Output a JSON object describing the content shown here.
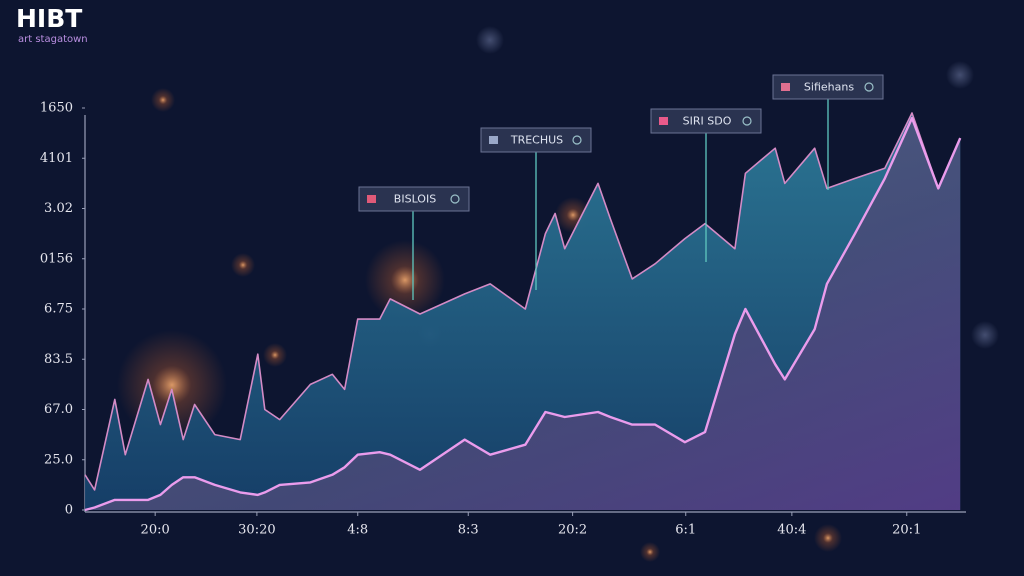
{
  "chart_data": {
    "type": "area",
    "title": "HIBT",
    "subtitle": "art stagatown",
    "x": [
      0,
      1.1,
      3.4,
      4.6,
      7.2,
      8.6,
      9.9,
      11.2,
      12.5,
      14.8,
      17.7,
      19.7,
      20.5,
      22.2,
      25.7,
      28.2,
      29.6,
      31.1,
      33.6,
      34.8,
      38.2,
      43.3,
      46.2,
      50.2,
      52.5,
      53.6,
      54.7,
      58.5,
      59.9,
      62.4,
      65.0,
      68.4,
      70.7,
      74.1,
      75.3,
      78.7,
      79.8,
      83.2,
      84.6,
      87.8,
      91.2,
      94.3,
      97.3,
      99.8
    ],
    "series": [
      {
        "color": "#d48bc6",
        "values": [
          0.7,
          0.4,
          2.2,
          1.1,
          2.6,
          1.7,
          2.4,
          1.4,
          2.1,
          1.5,
          1.4,
          3.1,
          2.0,
          1.8,
          2.5,
          2.7,
          2.4,
          3.8,
          3.8,
          4.2,
          3.9,
          4.3,
          4.5,
          4.0,
          5.5,
          5.9,
          5.2,
          6.5,
          5.8,
          4.6,
          4.9,
          5.4,
          5.7,
          5.2,
          6.7,
          7.2,
          6.5,
          7.2,
          6.4,
          6.6,
          6.8,
          7.9,
          6.4,
          7.4
        ]
      },
      {
        "color": "#ea9cec",
        "values": [
          0,
          0.05,
          0.2,
          0.2,
          0.2,
          0.3,
          0.5,
          0.65,
          0.65,
          0.5,
          0.35,
          0.3,
          0.35,
          0.5,
          0.55,
          0.7,
          0.85,
          1.1,
          1.15,
          1.1,
          0.8,
          1.4,
          1.1,
          1.3,
          1.95,
          1.9,
          1.85,
          1.95,
          1.85,
          1.7,
          1.7,
          1.35,
          1.55,
          3.5,
          4.0,
          2.9,
          2.6,
          3.6,
          4.5,
          5.5,
          6.6,
          7.8,
          6.4,
          7.4
        ]
      }
    ],
    "xlim": [
      0,
      100
    ],
    "xticks": [
      {
        "value": 8.0,
        "label": "20:0"
      },
      {
        "value": 19.6,
        "label": "30:20"
      },
      {
        "value": 31.1,
        "label": "4:8"
      },
      {
        "value": 43.7,
        "label": "8:3"
      },
      {
        "value": 55.6,
        "label": "20:2"
      },
      {
        "value": 68.5,
        "label": "6:1"
      },
      {
        "value": 80.6,
        "label": "40:4"
      },
      {
        "value": 93.7,
        "label": "20:1"
      }
    ],
    "ylim": [
      0,
      8
    ],
    "yticks": [
      0,
      {
        "value": 1,
        "label": "25.0"
      },
      {
        "value": 2,
        "label": "67.0"
      },
      {
        "value": 3,
        "label": "83.5"
      },
      {
        "value": 4,
        "label": "6.75"
      },
      {
        "value": 5,
        "label": "0156"
      },
      {
        "value": 6,
        "label": "3.02"
      },
      {
        "value": 7,
        "label": "4101"
      },
      {
        "value": 8,
        "label": "1650"
      }
    ],
    "annotations": [
      "BISLOIS",
      "TRECHUS",
      "SIRI SDO",
      "Sifiehans"
    ]
  }
}
